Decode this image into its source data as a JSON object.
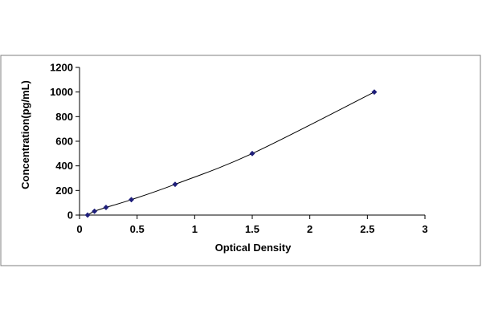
{
  "chart_data": {
    "type": "scatter",
    "title": "",
    "xlabel": "Optical Density",
    "ylabel": "Concentration(pg/mL)",
    "xlim": [
      0,
      3
    ],
    "ylim": [
      0,
      1200
    ],
    "xticks": [
      0,
      0.5,
      1,
      1.5,
      2,
      2.5,
      3
    ],
    "yticks": [
      0,
      200,
      400,
      600,
      800,
      1000,
      1200
    ],
    "xtick_labels": [
      "0",
      "0.5",
      "1",
      "1.5",
      "2",
      "2.5",
      "3"
    ],
    "ytick_labels": [
      "0",
      "200",
      "400",
      "600",
      "800",
      "1000",
      "1200"
    ],
    "grid": false,
    "legend": "none",
    "trendline": true,
    "colors": {
      "marker": "#1f1f7a",
      "line": "#000000",
      "frame": "#7f7f7f"
    },
    "series": [
      {
        "x": [
          0.07,
          0.13,
          0.23,
          0.45,
          0.83,
          1.5,
          2.56
        ],
        "y": [
          0,
          31,
          62,
          125,
          250,
          500,
          1000
        ]
      }
    ]
  }
}
